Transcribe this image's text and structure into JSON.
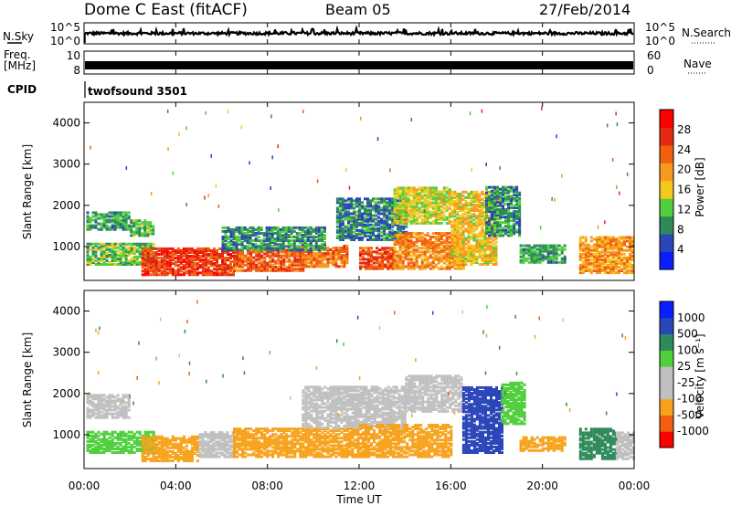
{
  "header": {
    "station": "Dome C East (fitACF)",
    "beam": "Beam 05",
    "date": "27/Feb/2014"
  },
  "noise_panel": {
    "left_label": "N.Sky",
    "left_ticks": [
      "10^5",
      "10^0"
    ],
    "right_ticks": [
      "10^5",
      "10^0"
    ],
    "right_label": "N.Search"
  },
  "freq_panel": {
    "left_label_1": "Freq.",
    "left_label_2": "[MHz]",
    "left_ticks": [
      "10",
      "8"
    ],
    "right_ticks": [
      "60",
      "0"
    ],
    "right_label": "Nave"
  },
  "cpid_panel": {
    "label": "CPID",
    "program": "twofsound 3501"
  },
  "x_axis": {
    "label": "Time UT",
    "ticks": [
      "00:00",
      "04:00",
      "08:00",
      "12:00",
      "16:00",
      "20:00",
      "00:00"
    ]
  },
  "colors": {
    "power_scale": [
      "#0a1eff",
      "#2a46b8",
      "#2f8a5a",
      "#4fcf3c",
      "#f2c91c",
      "#f79a1c",
      "#f0600f",
      "#e32a12",
      "#ff0000"
    ],
    "velocity_scale": [
      "#ff0000",
      "#f0600f",
      "#f7a21c",
      "#c0c0c0",
      "#c0c0c0",
      "#4fcf3c",
      "#2f8a5a",
      "#2a46b8",
      "#0a1eff"
    ]
  },
  "chart_data": [
    {
      "type": "line",
      "name": "noise",
      "x_range": [
        0,
        24
      ],
      "y_scale": "log",
      "y_range": [
        1,
        100000
      ]
    },
    {
      "type": "line",
      "name": "frequency",
      "x_range": [
        0,
        24
      ],
      "y_range": [
        8,
        10
      ],
      "y2_range": [
        0,
        60
      ]
    },
    {
      "type": "heatmap",
      "name": "power",
      "x_range": [
        0,
        24
      ],
      "ylabel": "Slant Range [km]",
      "y_range": [
        180,
        4500
      ],
      "y_ticks": [
        "1000",
        "2000",
        "3000",
        "4000"
      ],
      "colorbar_label": "Power [dB]",
      "colorbar_ticks": [
        "28",
        "24",
        "20",
        "16",
        "12",
        "8",
        "4"
      ],
      "regions": [
        {
          "t0": 0.1,
          "t1": 2.0,
          "r0": 1450,
          "r1": 1900,
          "v": 10
        },
        {
          "t0": 0.1,
          "t1": 3.0,
          "r0": 600,
          "r1": 1100,
          "v": 12
        },
        {
          "t0": 2.0,
          "t1": 3.0,
          "r0": 1300,
          "r1": 1700,
          "v": 11
        },
        {
          "t0": 2.5,
          "t1": 6.5,
          "r0": 350,
          "r1": 1000,
          "v": 26
        },
        {
          "t0": 6.5,
          "t1": 9.5,
          "r0": 450,
          "r1": 950,
          "v": 24
        },
        {
          "t0": 9.5,
          "t1": 11.5,
          "r0": 550,
          "r1": 1050,
          "v": 22
        },
        {
          "t0": 6.0,
          "t1": 10.5,
          "r0": 950,
          "r1": 1500,
          "v": 9
        },
        {
          "t0": 11.0,
          "t1": 14.0,
          "r0": 1200,
          "r1": 2200,
          "v": 8
        },
        {
          "t0": 12.0,
          "t1": 13.5,
          "r0": 500,
          "r1": 1000,
          "v": 25
        },
        {
          "t0": 13.5,
          "t1": 16.5,
          "r0": 500,
          "r1": 1400,
          "v": 21
        },
        {
          "t0": 13.5,
          "t1": 16.0,
          "r0": 1600,
          "r1": 2500,
          "v": 15
        },
        {
          "t0": 16.0,
          "t1": 18.0,
          "r0": 600,
          "r1": 2400,
          "v": 17
        },
        {
          "t0": 17.5,
          "t1": 19.0,
          "r0": 1300,
          "r1": 2500,
          "v": 9
        },
        {
          "t0": 19.0,
          "t1": 21.0,
          "r0": 650,
          "r1": 1100,
          "v": 10
        },
        {
          "t0": 21.6,
          "t1": 24.0,
          "r0": 400,
          "r1": 1300,
          "v": 20
        }
      ]
    },
    {
      "type": "heatmap",
      "name": "velocity",
      "x_range": [
        0,
        24
      ],
      "xlabel": "Time UT",
      "ylabel": "Slant Range [km]",
      "y_range": [
        180,
        4500
      ],
      "y_ticks": [
        "1000",
        "2000",
        "3000",
        "4000"
      ],
      "colorbar_label": "Velocity [m s⁻¹]",
      "colorbar_ticks": [
        "1000",
        "500",
        "100",
        "25",
        "-25",
        "-100",
        "-500",
        "-1000"
      ],
      "regions": [
        {
          "t0": 0.1,
          "t1": 2.0,
          "r0": 1450,
          "r1": 2000,
          "v": 0
        },
        {
          "t0": 0.1,
          "t1": 3.0,
          "r0": 600,
          "r1": 1100,
          "v": 60
        },
        {
          "t0": 2.5,
          "t1": 5.0,
          "r0": 400,
          "r1": 1000,
          "v": -250
        },
        {
          "t0": 5.0,
          "t1": 6.5,
          "r0": 500,
          "r1": 1100,
          "v": -40
        },
        {
          "t0": 6.5,
          "t1": 12.0,
          "r0": 500,
          "r1": 1200,
          "v": -280
        },
        {
          "t0": 9.5,
          "t1": 14.0,
          "r0": 1200,
          "r1": 2200,
          "v": 0
        },
        {
          "t0": 12.0,
          "t1": 16.0,
          "r0": 500,
          "r1": 1300,
          "v": -300
        },
        {
          "t0": 14.0,
          "t1": 16.5,
          "r0": 1600,
          "r1": 2500,
          "v": 0
        },
        {
          "t0": 16.5,
          "t1": 18.2,
          "r0": 600,
          "r1": 2200,
          "v": 700
        },
        {
          "t0": 18.2,
          "t1": 19.2,
          "r0": 1300,
          "r1": 2300,
          "v": 60
        },
        {
          "t0": 19.0,
          "t1": 21.0,
          "r0": 650,
          "r1": 1000,
          "v": -150
        },
        {
          "t0": 21.6,
          "t1": 23.2,
          "r0": 450,
          "r1": 1200,
          "v": 300
        },
        {
          "t0": 23.2,
          "t1": 24.0,
          "r0": 450,
          "r1": 1100,
          "v": -60
        }
      ]
    }
  ]
}
